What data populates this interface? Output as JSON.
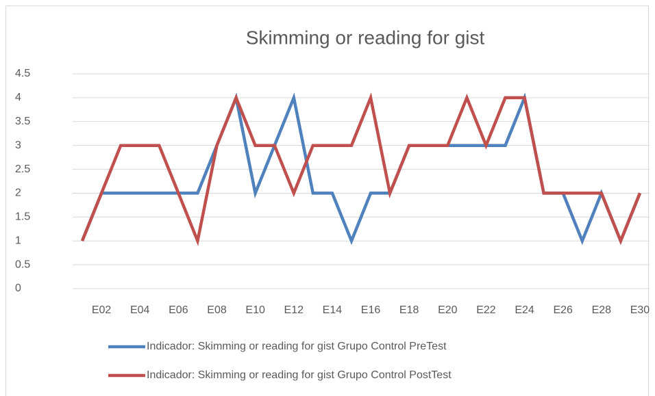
{
  "chart_data": {
    "type": "line",
    "title": "Skimming or reading for gist",
    "categories": [
      null,
      "E02",
      null,
      "E04",
      null,
      "E06",
      null,
      "E08",
      null,
      "E10",
      null,
      "E12",
      null,
      "E14",
      null,
      "E16",
      null,
      "E18",
      null,
      "E20",
      null,
      "E22",
      null,
      "E24",
      null,
      "E26",
      null,
      "E28",
      null,
      "E30"
    ],
    "series": [
      {
        "name": "Indicador: Skimming or reading for gist Grupo Control PreTest",
        "color": "#4f81bd",
        "values": [
          1,
          2,
          2,
          2,
          2,
          2,
          2,
          3,
          4,
          2,
          3,
          4,
          2,
          2,
          1,
          2,
          2,
          3,
          3,
          3,
          3,
          3,
          3,
          4,
          2,
          2,
          1,
          2,
          1,
          2
        ]
      },
      {
        "name": "Indicador: Skimming or reading for gist Grupo Control PostTest",
        "color": "#c0504d",
        "values": [
          1,
          2,
          3,
          3,
          3,
          2,
          1,
          3,
          4,
          3,
          3,
          2,
          3,
          3,
          3,
          4,
          2,
          3,
          3,
          3,
          4,
          3,
          4,
          4,
          2,
          2,
          2,
          2,
          1,
          2
        ]
      }
    ],
    "ylim": [
      0,
      4.5
    ],
    "yticks": [
      0,
      0.5,
      1,
      1.5,
      2,
      2.5,
      3,
      3.5,
      4,
      4.5
    ],
    "grid": true,
    "legend": "bottom"
  }
}
